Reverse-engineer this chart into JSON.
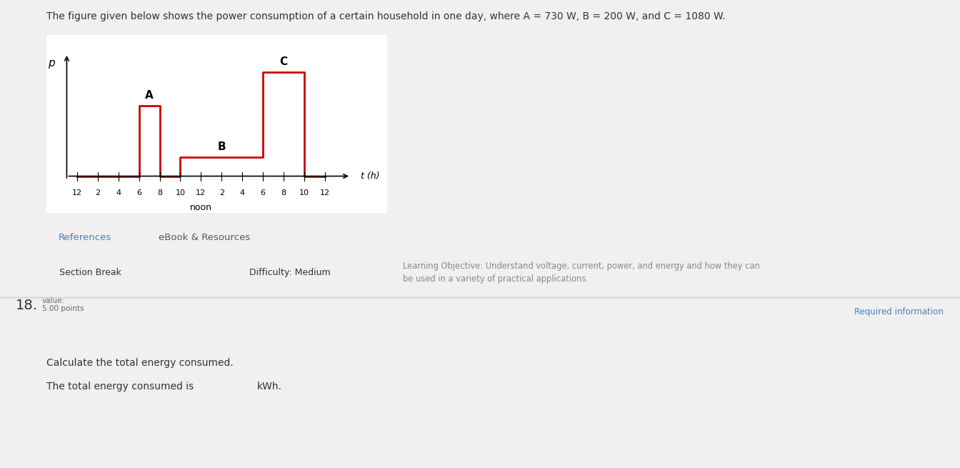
{
  "title_text": "The figure given below shows the power consumption of a certain household in one day, where A = 730 W, B = 200 W, and C = 1080 W.",
  "title_color": "#333333",
  "title_fontsize": 10.0,
  "graph_bg": "#ffffff",
  "page_bg": "#f0f0f0",
  "step_color": "#cc0000",
  "step_linewidth": 2.0,
  "ylabel": "p",
  "xlabel_t": "t (h)",
  "tick_labels": [
    "12",
    "2",
    "4",
    "6",
    "8",
    "10",
    "12",
    "2",
    "4",
    "6",
    "8",
    "10",
    "12"
  ],
  "noon_label": "noon",
  "A_label": "A",
  "B_label": "B",
  "C_label": "C",
  "A_val": 730,
  "B_val": 200,
  "C_val": 1080,
  "section_break_text": "Section Break",
  "difficulty_text": "Difficulty: Medium",
  "learning_obj_text": "Learning Objective: Understand voltage, current, power, and energy and how they can\nbe used in a variety of practical applications.",
  "references_text": "References",
  "ebook_text": "eBook & Resources",
  "q18_label": "18.",
  "value_label": "value:",
  "points_label": "5.00 points",
  "req_info_text": "Required information",
  "calc_text": "Calculate the total energy consumed.",
  "answer_text": "The total energy consumed is",
  "kwh_text": "kWh.",
  "border_color": "#cc0000",
  "white_bg": "#ffffff",
  "light_gray": "#f0f0f0",
  "tab_active_color": "#ffffff",
  "tab_inactive_color": "#f0f0f0",
  "separator_color": "#cccccc",
  "ref_blue": "#4a7fc1",
  "section_gray": "#888888",
  "req_button_bg": "#dce6f1",
  "req_button_color": "#4a7fc1"
}
